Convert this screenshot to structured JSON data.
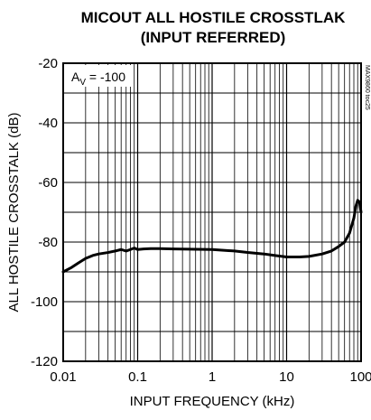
{
  "chart_data": {
    "type": "line",
    "title_lines": [
      "MICOUT ALL HOSTILE CROSSTLAK",
      "(INPUT REFERRED)"
    ],
    "xlabel": "INPUT FREQUENCY (kHz)",
    "ylabel": "ALL HOSTILE CROSSTALK (dB)",
    "x_scale": "log",
    "xlim": [
      0.01,
      100
    ],
    "ylim": [
      -120,
      -20
    ],
    "x_ticks": [
      "0.01",
      "0.1",
      "1",
      "10",
      "100"
    ],
    "y_ticks": [
      "-20",
      "-40",
      "-60",
      "-80",
      "-100",
      "-120"
    ],
    "grid": true,
    "annotation": {
      "main": "A",
      "sub": "V",
      "rest": " = -100"
    },
    "part_code": "MAX9860 toc25",
    "series": [
      {
        "x": [
          0.01,
          0.013,
          0.016,
          0.02,
          0.025,
          0.03,
          0.04,
          0.05,
          0.06,
          0.07,
          0.08,
          0.09,
          0.1,
          0.12,
          0.15,
          0.2,
          0.3,
          0.5,
          1,
          2,
          3,
          5,
          7,
          10,
          15,
          20,
          30,
          40,
          50,
          60,
          70,
          80,
          85,
          90,
          95,
          100
        ],
        "y": [
          -90,
          -88.5,
          -87,
          -85.5,
          -84.5,
          -84,
          -83.5,
          -83,
          -82.5,
          -83,
          -82.5,
          -82,
          -82.5,
          -82.3,
          -82.2,
          -82.2,
          -82.3,
          -82.4,
          -82.5,
          -83,
          -83.5,
          -84,
          -84.5,
          -85,
          -85,
          -84.8,
          -84,
          -83,
          -81.5,
          -80,
          -77,
          -72,
          -68,
          -66,
          -66.5,
          -70
        ]
      }
    ]
  }
}
